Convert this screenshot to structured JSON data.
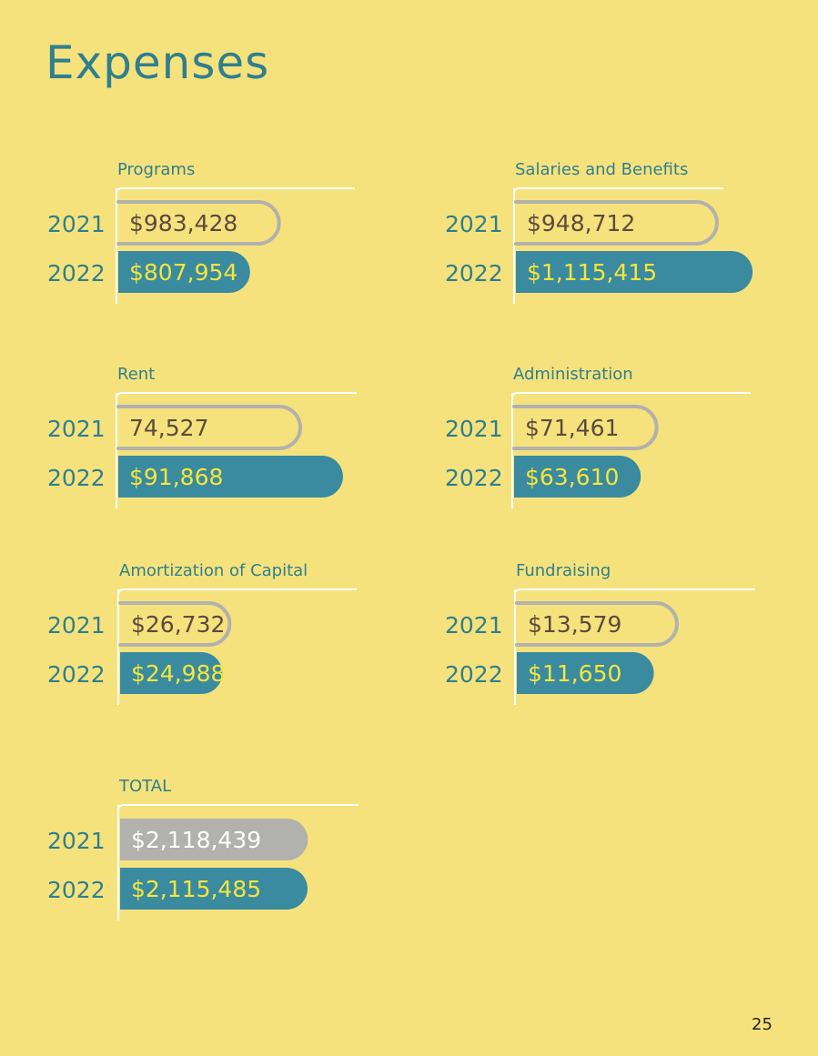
{
  "page": {
    "title": "Expenses",
    "page_number": "25"
  },
  "colors": {
    "background": "#f6e27c",
    "teal": "#3a8aa0",
    "teal_text": "#2f7f8e",
    "gray": "#b1b1ad",
    "dark_text": "#5c4a3e",
    "yellow_text": "#f5e63a",
    "white_text": "#ffffff"
  },
  "chart_data": [
    {
      "type": "bar",
      "title": "Programs",
      "categories": [
        "2021",
        "2022"
      ],
      "values": [
        983428,
        807954
      ],
      "labels": [
        "$983,428",
        "$807,954"
      ],
      "xlim": [
        0,
        1200000
      ]
    },
    {
      "type": "bar",
      "title": "Salaries and Benefits",
      "categories": [
        "2021",
        "2022"
      ],
      "values": [
        948712,
        1115415
      ],
      "labels": [
        "$948,712",
        "$1,115,415"
      ],
      "xlim": [
        0,
        1200000
      ]
    },
    {
      "type": "bar",
      "title": "Rent",
      "categories": [
        "2021",
        "2022"
      ],
      "values": [
        74527,
        91868
      ],
      "labels": [
        "74,527",
        "$91,868"
      ],
      "xlim": [
        0,
        100000
      ]
    },
    {
      "type": "bar",
      "title": "Administration",
      "categories": [
        "2021",
        "2022"
      ],
      "values": [
        71461,
        63610
      ],
      "labels": [
        "$71,461",
        "$63,610"
      ],
      "xlim": [
        0,
        100000
      ]
    },
    {
      "type": "bar",
      "title": "Amortization of Capital",
      "categories": [
        "2021",
        "2022"
      ],
      "values": [
        26732,
        24988
      ],
      "labels": [
        "$26,732",
        "$24,988"
      ],
      "xlim": [
        0,
        45000
      ]
    },
    {
      "type": "bar",
      "title": "Fundraising",
      "categories": [
        "2021",
        "2022"
      ],
      "values": [
        13579,
        11650
      ],
      "labels": [
        "$13,579",
        "$11,650"
      ],
      "xlim": [
        0,
        20000
      ]
    },
    {
      "type": "bar",
      "title": "TOTAL",
      "categories": [
        "2021",
        "2022"
      ],
      "values": [
        2118439,
        2115485
      ],
      "labels": [
        "$2,118,439",
        "$2,115,485"
      ],
      "xlim": [
        0,
        3000000
      ],
      "style": "total"
    }
  ]
}
